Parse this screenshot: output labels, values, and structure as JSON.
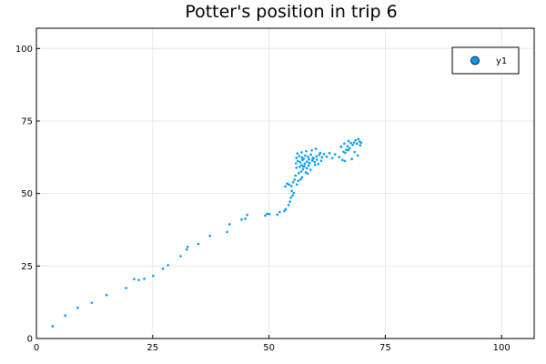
{
  "chart_data": {
    "type": "scatter",
    "title": "Potter's position in trip 6",
    "xlabel": "",
    "ylabel": "",
    "xlim": [
      0,
      107
    ],
    "ylim": [
      0,
      107
    ],
    "xticks": [
      0,
      25,
      50,
      75,
      100
    ],
    "yticks": [
      0,
      25,
      50,
      75,
      100
    ],
    "grid": true,
    "legend_position": "top-right",
    "series": [
      {
        "name": "y1",
        "color": "#009AFA",
        "points": [
          [
            3.5,
            4.2
          ],
          [
            6.2,
            7.9
          ],
          [
            8.9,
            10.6
          ],
          [
            11.9,
            12.3
          ],
          [
            15.1,
            15.0
          ],
          [
            19.3,
            17.4
          ],
          [
            21.0,
            20.5
          ],
          [
            22.0,
            20.2
          ],
          [
            23.2,
            20.6
          ],
          [
            25.1,
            21.6
          ],
          [
            27.2,
            24.1
          ],
          [
            28.3,
            25.3
          ],
          [
            31.0,
            28.4
          ],
          [
            32.3,
            30.7
          ],
          [
            32.5,
            31.6
          ],
          [
            34.8,
            32.6
          ],
          [
            37.3,
            35.4
          ],
          [
            41.0,
            36.7
          ],
          [
            41.5,
            39.4
          ],
          [
            44.1,
            41.0
          ],
          [
            44.9,
            41.3
          ],
          [
            45.3,
            42.6
          ],
          [
            49.2,
            42.4
          ],
          [
            49.6,
            43.0
          ],
          [
            50.1,
            42.9
          ],
          [
            51.8,
            42.7
          ],
          [
            52.3,
            43.6
          ],
          [
            53.3,
            44.0
          ],
          [
            53.6,
            44.6
          ],
          [
            54.2,
            46.0
          ],
          [
            54.5,
            47.2
          ],
          [
            54.7,
            48.6
          ],
          [
            55.1,
            49.3
          ],
          [
            55.3,
            50.2
          ],
          [
            54.9,
            50.9
          ],
          [
            53.5,
            52.4
          ],
          [
            53.9,
            53.4
          ],
          [
            54.3,
            53.1
          ],
          [
            54.8,
            52.6
          ],
          [
            55.2,
            53.9
          ],
          [
            55.5,
            54.8
          ],
          [
            56.0,
            53.1
          ],
          [
            56.3,
            54.4
          ],
          [
            56.8,
            54.9
          ],
          [
            57.1,
            55.6
          ],
          [
            55.7,
            56.2
          ],
          [
            56.4,
            57.0
          ],
          [
            56.9,
            57.6
          ],
          [
            57.3,
            58.4
          ],
          [
            55.9,
            58.9
          ],
          [
            56.6,
            59.2
          ],
          [
            57.0,
            59.8
          ],
          [
            57.6,
            59.4
          ],
          [
            58.1,
            58.7
          ],
          [
            58.5,
            59.6
          ],
          [
            55.8,
            60.4
          ],
          [
            56.2,
            61.2
          ],
          [
            56.7,
            60.8
          ],
          [
            57.2,
            61.6
          ],
          [
            57.7,
            60.3
          ],
          [
            58.2,
            61.0
          ],
          [
            58.7,
            60.5
          ],
          [
            59.3,
            61.4
          ],
          [
            59.8,
            60.9
          ],
          [
            60.3,
            61.7
          ],
          [
            55.9,
            62.3
          ],
          [
            56.5,
            62.9
          ],
          [
            57.1,
            62.4
          ],
          [
            57.8,
            63.1
          ],
          [
            58.4,
            62.6
          ],
          [
            59.0,
            63.4
          ],
          [
            59.6,
            62.1
          ],
          [
            60.2,
            62.8
          ],
          [
            60.8,
            63.3
          ],
          [
            61.4,
            62.5
          ],
          [
            56.1,
            63.8
          ],
          [
            57.0,
            64.2
          ],
          [
            58.0,
            64.6
          ],
          [
            59.2,
            64.9
          ],
          [
            60.1,
            65.4
          ],
          [
            61.0,
            64.0
          ],
          [
            61.8,
            63.6
          ],
          [
            62.4,
            62.7
          ],
          [
            63.0,
            63.9
          ],
          [
            63.6,
            62.2
          ],
          [
            57.4,
            59.3
          ],
          [
            58.9,
            58.2
          ],
          [
            59.9,
            59.9
          ],
          [
            60.6,
            60.2
          ],
          [
            61.2,
            61.3
          ],
          [
            57.5,
            62.0
          ],
          [
            58.6,
            61.8
          ],
          [
            59.4,
            62.3
          ],
          [
            57.9,
            57.3
          ],
          [
            58.3,
            56.9
          ],
          [
            64.2,
            63.5
          ],
          [
            65.1,
            62.6
          ],
          [
            65.8,
            61.6
          ],
          [
            66.3,
            61.2
          ],
          [
            66.0,
            64.4
          ],
          [
            66.6,
            65.1
          ],
          [
            66.9,
            66.3
          ],
          [
            67.3,
            65.6
          ],
          [
            67.6,
            67.4
          ],
          [
            67.1,
            68.1
          ],
          [
            68.0,
            66.8
          ],
          [
            68.3,
            67.6
          ],
          [
            68.6,
            68.4
          ],
          [
            68.9,
            67.2
          ],
          [
            69.2,
            68.8
          ],
          [
            69.5,
            67.9
          ],
          [
            69.8,
            67.5
          ],
          [
            69.6,
            66.6
          ],
          [
            68.4,
            64.3
          ],
          [
            69.1,
            63.1
          ],
          [
            67.8,
            61.9
          ],
          [
            66.4,
            64.0
          ],
          [
            67.0,
            64.9
          ],
          [
            65.5,
            66.1
          ],
          [
            66.2,
            67.2
          ]
        ]
      }
    ]
  }
}
